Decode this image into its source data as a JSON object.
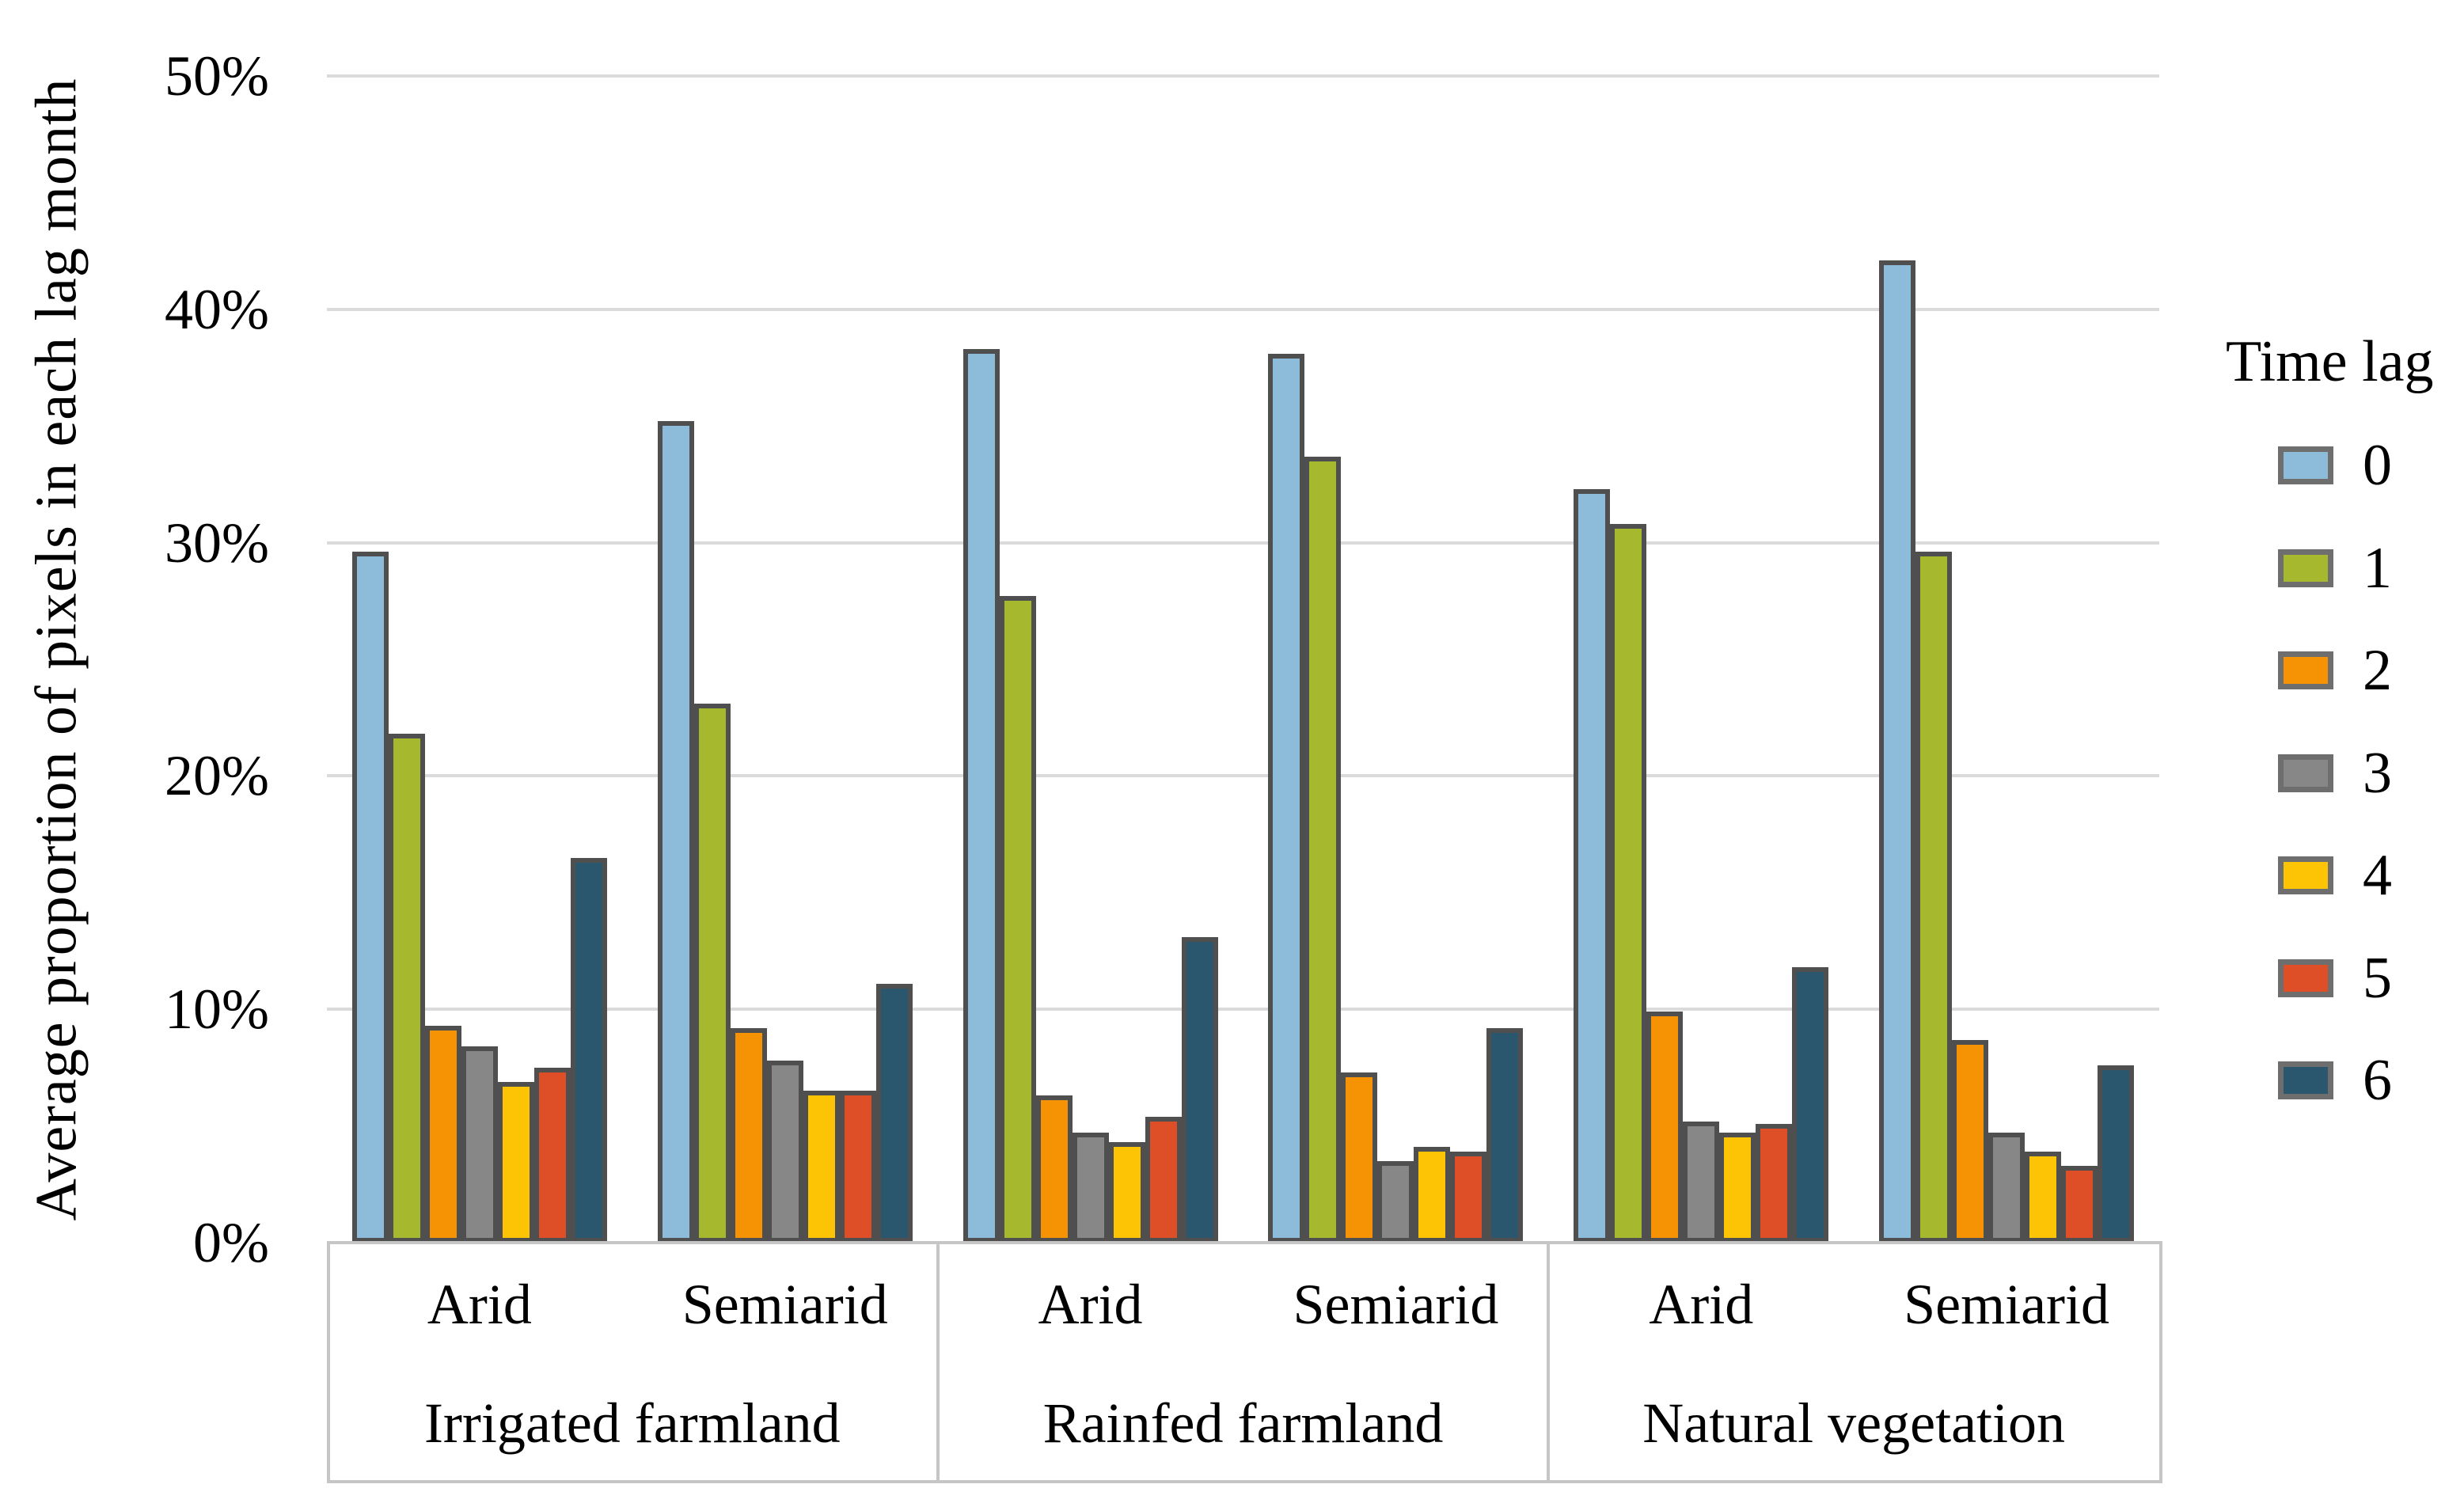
{
  "y_axis": {
    "title": "Average proportion of pixels  in each lag month",
    "tick_labels": [
      "50%",
      "40%",
      "30%",
      "20%",
      "10%",
      "0%"
    ],
    "min": 0,
    "max": 50,
    "step": 10
  },
  "legend": {
    "title": "Time lag",
    "items": [
      {
        "label": "0",
        "color": "#8dbbda"
      },
      {
        "label": "1",
        "color": "#a6b82d"
      },
      {
        "label": "2",
        "color": "#f59304"
      },
      {
        "label": "3",
        "color": "#878787"
      },
      {
        "label": "4",
        "color": "#fcc405"
      },
      {
        "label": "5",
        "color": "#de4f28"
      },
      {
        "label": "6",
        "color": "#2a566e"
      }
    ]
  },
  "chart_data": {
    "type": "bar",
    "title": "",
    "xlabel": "",
    "ylabel": "Average proportion of pixels  in each lag month",
    "ylim": [
      0,
      50
    ],
    "grid": true,
    "legend_position": "right",
    "groups": [
      {
        "label": "Irrigated farmland",
        "subgroups": [
          "Arid",
          "Semiarid"
        ]
      },
      {
        "label": "Rainfed farmland",
        "subgroups": [
          "Arid",
          "Semiarid"
        ]
      },
      {
        "label": "Natural vegetation",
        "subgroups": [
          "Arid",
          "Semiarid"
        ]
      }
    ],
    "category_order": [
      "Irrigated farmland / Arid",
      "Irrigated farmland / Semiarid",
      "Rainfed farmland / Arid",
      "Rainfed farmland / Semiarid",
      "Natural vegetation / Arid",
      "Natural vegetation / Semiarid"
    ],
    "series": [
      {
        "name": "0",
        "color": "#8dbbda",
        "values": [
          29.6,
          35.2,
          38.3,
          38.1,
          32.3,
          42.1
        ]
      },
      {
        "name": "1",
        "color": "#a6b82d",
        "values": [
          21.8,
          23.1,
          27.7,
          33.7,
          30.8,
          29.6
        ]
      },
      {
        "name": "2",
        "color": "#f59304",
        "values": [
          9.3,
          9.2,
          6.3,
          7.3,
          9.9,
          8.7
        ]
      },
      {
        "name": "3",
        "color": "#878787",
        "values": [
          8.4,
          7.8,
          4.7,
          3.5,
          5.2,
          4.7
        ]
      },
      {
        "name": "4",
        "color": "#fcc405",
        "values": [
          6.9,
          6.5,
          4.3,
          4.1,
          4.7,
          3.9
        ]
      },
      {
        "name": "5",
        "color": "#de4f28",
        "values": [
          7.5,
          6.5,
          5.4,
          3.9,
          5.1,
          3.3
        ]
      },
      {
        "name": "6",
        "color": "#2a566e",
        "values": [
          16.5,
          11.1,
          13.1,
          9.2,
          11.8,
          7.6
        ]
      }
    ]
  },
  "colors": {
    "gridline": "#dbdbdb",
    "frame": "#c6c6c6",
    "bar_border": "#4f4f4f",
    "text": "#000000"
  }
}
